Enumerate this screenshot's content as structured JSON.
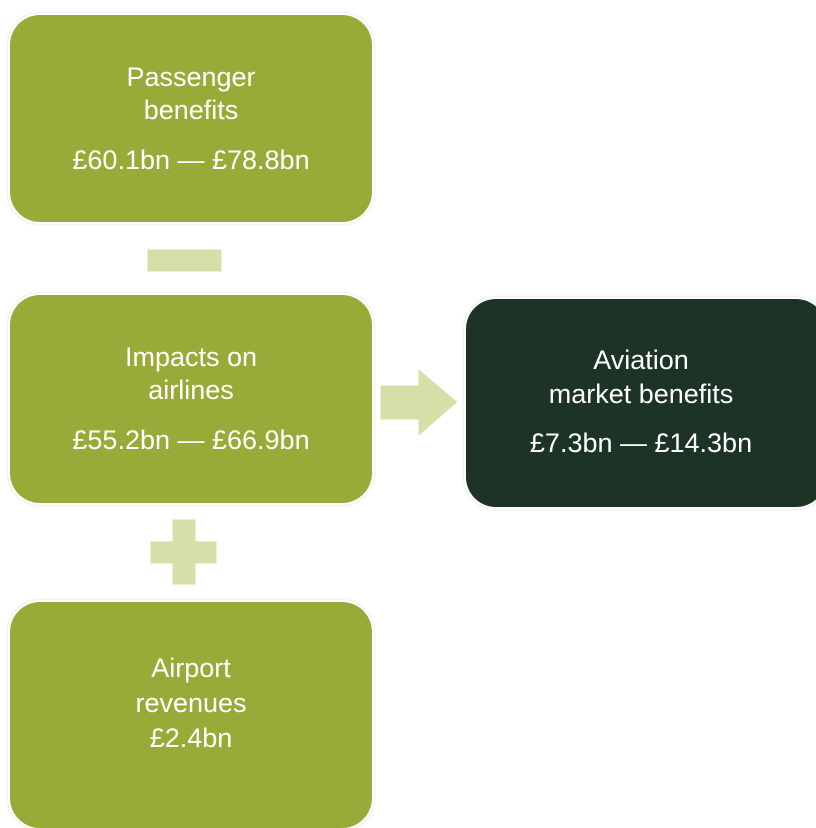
{
  "nodes": [
    {
      "label_lines": [
        "Passenger",
        "benefits"
      ],
      "value": "£60.1bn — £78.8bn"
    },
    {
      "label_lines": [
        "Impacts on",
        "airlines"
      ],
      "value": "£55.2bn — £66.9bn"
    },
    {
      "label_lines": [
        "Aviation",
        "market benefits"
      ],
      "value": "£7.3bn — £14.3bn"
    },
    {
      "label_lines": [
        "Airport",
        "revenues"
      ],
      "value": "£2.4bn"
    }
  ]
}
